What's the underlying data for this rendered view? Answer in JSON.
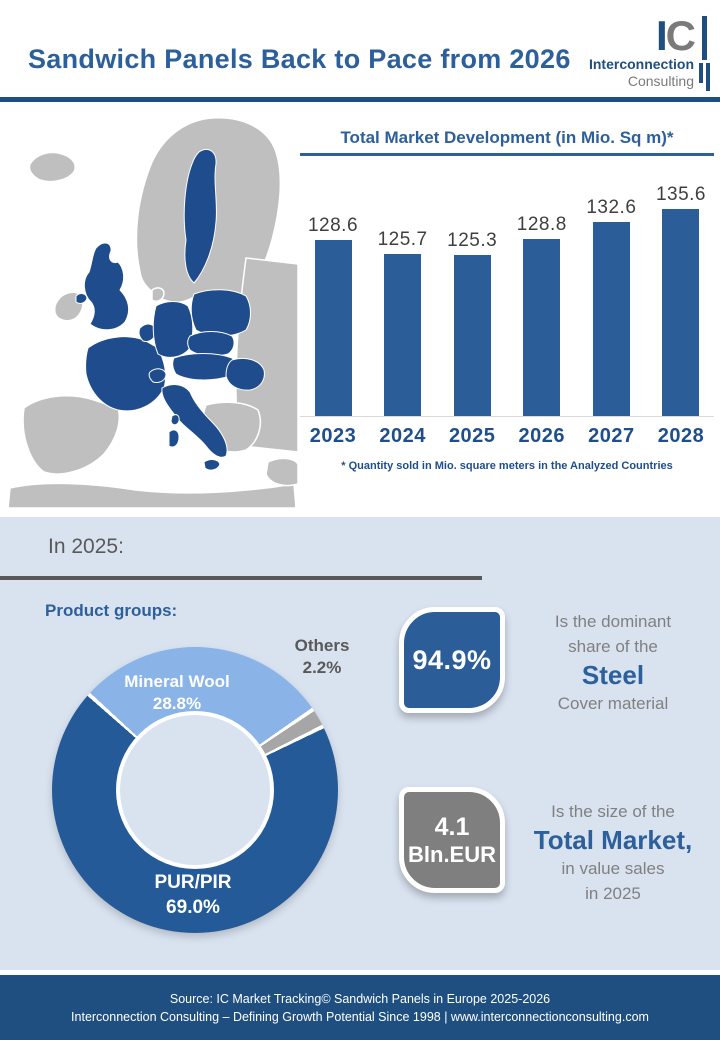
{
  "header": {
    "title": "Sandwich Panels Back to Pace from 2026",
    "logo": {
      "letter_i": "I",
      "letter_c": "C",
      "line1": "Interconnection",
      "line2": "Consulting"
    }
  },
  "market_chart": {
    "title": "Total Market Development (in Mio. Sq m)*",
    "footnote": "* Quantity sold in Mio. square meters in the Analyzed Countries"
  },
  "in2025": {
    "heading": "In 2025:",
    "product_groups_label": "Product groups:"
  },
  "donut_labels": {
    "mineral_wool": "Mineral Wool",
    "mineral_wool_pct": "28.8%",
    "pur_pir": "PUR/PIR",
    "pur_pir_pct": "69.0%",
    "others": "Others",
    "others_pct": "2.2%"
  },
  "steel_card": {
    "value": "94.9%",
    "line1": "Is the dominant",
    "line2": "share of the",
    "highlight": "Steel",
    "line3": "Cover material"
  },
  "market_card": {
    "value_top": "4.1",
    "value_bottom": "Bln.EUR",
    "line1": "Is the size of the",
    "highlight": "Total Market,",
    "line2": "in value sales",
    "line3": "in 2025"
  },
  "footer": {
    "line1": "Source: IC Market Tracking© Sandwich Panels in Europe 2025-2026",
    "line2": "Interconnection Consulting – Defining Growth Potential Since 1998 | www.interconnectionconsulting.com"
  },
  "colors": {
    "primary_blue": "#2b5d98",
    "dark_blue": "#1e4f80",
    "title_blue": "#2d5f9b",
    "map_gray": "#bfbfbf",
    "map_blue": "#1e4c8c",
    "section_bg": "#d9e3f0",
    "light_slice": "#8ab3e8",
    "slice_gray": "#a6a6a6",
    "text_gray": "#808080",
    "card_gray": "#7f7f7f"
  },
  "chart_data": [
    {
      "type": "bar",
      "title": "Total Market Development (in Mio. Sq m)*",
      "categories": [
        "2023",
        "2024",
        "2025",
        "2026",
        "2027",
        "2028"
      ],
      "values": [
        128.6,
        125.7,
        125.3,
        128.8,
        132.6,
        135.6
      ],
      "unit": "Mio. sq m",
      "ylim": [
        90,
        140
      ],
      "grid": false,
      "bar_color": "#2b5d98",
      "footnote": "* Quantity sold in Mio. square meters in the Analyzed Countries"
    },
    {
      "type": "pie",
      "donut": true,
      "title": "Product groups:",
      "categories": [
        "PUR/PIR",
        "Mineral Wool",
        "Others"
      ],
      "values": [
        69.0,
        28.8,
        2.2
      ],
      "unit": "%",
      "colors": [
        "#235a97",
        "#8ab3e8",
        "#a6a6a6"
      ],
      "start_angle_deg": 63.6,
      "legend_position": "on-slices"
    }
  ]
}
